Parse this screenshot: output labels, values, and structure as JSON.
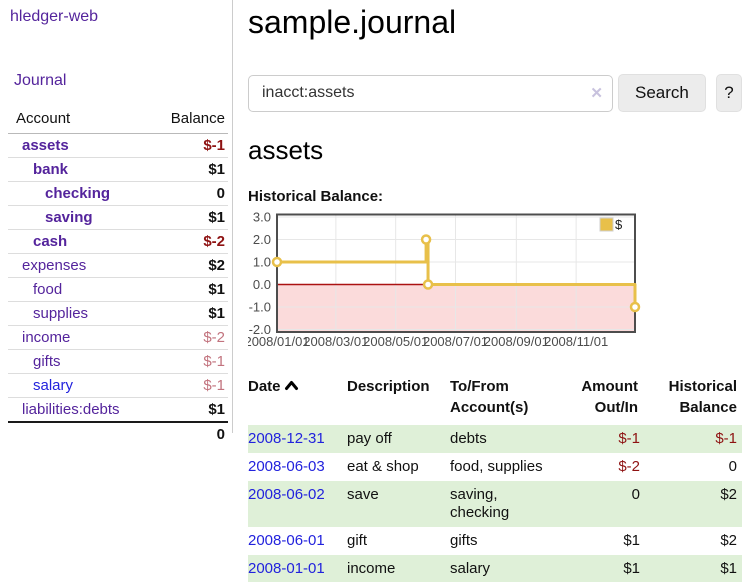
{
  "app": {
    "title": "hledger-web"
  },
  "sidebar": {
    "journal_label": "Journal",
    "table": {
      "headers": {
        "account": "Account",
        "balance": "Balance"
      },
      "rows": [
        {
          "account": "assets",
          "balance": "$-1",
          "depth": 0
        },
        {
          "account": "bank",
          "balance": "$1",
          "depth": 1
        },
        {
          "account": "checking",
          "balance": "0",
          "depth": 2
        },
        {
          "account": "saving",
          "balance": "$1",
          "depth": 2
        },
        {
          "account": "cash",
          "balance": "$-2",
          "depth": 1
        },
        {
          "account": "expenses",
          "balance": "$2",
          "depth": 0
        },
        {
          "account": "food",
          "balance": "$1",
          "depth": 1
        },
        {
          "account": "supplies",
          "balance": "$1",
          "depth": 1
        },
        {
          "account": "income",
          "balance": "$-2",
          "depth": 0
        },
        {
          "account": "gifts",
          "balance": "$-1",
          "depth": 1
        },
        {
          "account": "salary",
          "balance": "$-1",
          "depth": 1
        },
        {
          "account": "liabilities:debts",
          "balance": "$1",
          "depth": 0
        }
      ],
      "total": "0"
    }
  },
  "main": {
    "title": "sample.journal",
    "search": {
      "value": "inacct:assets",
      "clear_icon": "✕",
      "button_label": "Search",
      "help_label": "?"
    },
    "account_heading": "assets",
    "chart_label": "Historical Balance:"
  },
  "chart_data": {
    "type": "line",
    "step": true,
    "title": "Historical Balance",
    "xlabel": "",
    "ylabel": "",
    "ylim": [
      -2,
      3
    ],
    "xlim_days": [
      0,
      365
    ],
    "grid": true,
    "legend_position": "top-right",
    "x_ticks": [
      {
        "day": 0,
        "label": "2008/01/01"
      },
      {
        "day": 60,
        "label": "2008/03/01"
      },
      {
        "day": 121,
        "label": "2008/05/01"
      },
      {
        "day": 182,
        "label": "2008/07/01"
      },
      {
        "day": 244,
        "label": "2008/09/01"
      },
      {
        "day": 305,
        "label": "2008/11/01"
      }
    ],
    "y_ticks": [
      {
        "value": 3,
        "label": "3.0"
      },
      {
        "value": 2,
        "label": "2.0"
      },
      {
        "value": 1,
        "label": "1.0"
      },
      {
        "value": 0,
        "label": "0.0"
      },
      {
        "value": -1,
        "label": "-1.0"
      },
      {
        "value": -2,
        "label": "-2.0"
      }
    ],
    "series": [
      {
        "name": "$",
        "color": "#e8c04a",
        "points": [
          {
            "date": "2008-01-01",
            "day": 0,
            "value": 1
          },
          {
            "date": "2008-06-01",
            "day": 152,
            "value": 2
          },
          {
            "date": "2008-06-03",
            "day": 154,
            "value": 0
          },
          {
            "date": "2008-12-31",
            "day": 365,
            "value": -1
          }
        ]
      }
    ],
    "colors": {
      "negative_region_fill": "#fbdbdb",
      "zero_line": "#ab1212",
      "grid_line": "#e7e7e7",
      "plot_border": "#4d4d4d",
      "tick_label": "#4c4c4c",
      "marker_fill": "#ffffff"
    }
  },
  "register": {
    "headers": {
      "date": "Date",
      "description": "Description",
      "account": "To/From Account(s)",
      "amount": "Amount Out/In",
      "balance": "Historical Balance"
    },
    "rows": [
      {
        "date": "2008-12-31",
        "description": "pay off",
        "account": "debts",
        "amount": "$-1",
        "balance": "$-1"
      },
      {
        "date": "2008-06-03",
        "description": "eat & shop",
        "account": "food, supplies",
        "amount": "$-2",
        "balance": "0"
      },
      {
        "date": "2008-06-02",
        "description": "save",
        "account": "saving,\nchecking",
        "amount": "0",
        "balance": "$2"
      },
      {
        "date": "2008-06-01",
        "description": "gift",
        "account": "gifts",
        "amount": "$1",
        "balance": "$2"
      },
      {
        "date": "2008-01-01",
        "description": "income",
        "account": "salary",
        "amount": "$1",
        "balance": "$1"
      }
    ]
  }
}
